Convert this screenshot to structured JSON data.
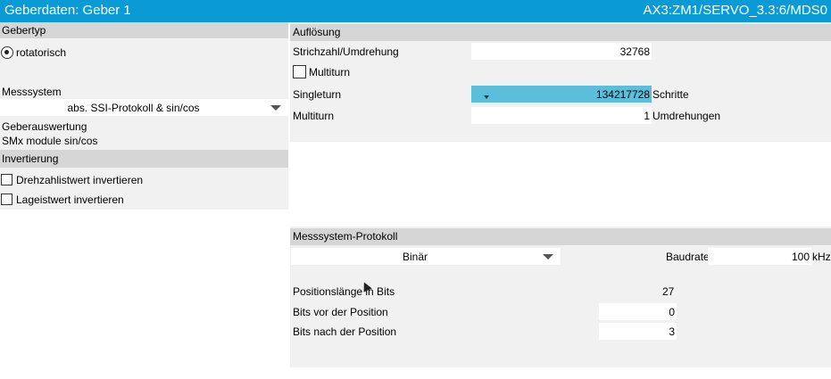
{
  "window": {
    "title": "Geberdaten: Geber 1",
    "path": "AX3:ZM1/SERVO_3.3:6/MDS0"
  },
  "left": {
    "gebertyp_header": "Gebertyp",
    "gebertyp_option": "rotatorisch",
    "messsystem_label": "Messsystem",
    "messsystem_value": "abs. SSI-Protokoll & sin/cos",
    "geberauswertung_label": "Geberauswertung",
    "geberauswertung_value": "SMx module sin/cos",
    "invertierung_header": "Invertierung",
    "drehzahl_label": "Drehzahlistwert invertieren",
    "lage_label": "Lageistwert invertieren"
  },
  "aufloesung": {
    "header": "Auflösung",
    "strichzahl_label": "Strichzahl/Umdrehung",
    "strichzahl_value": "32768",
    "multiturn_checkbox_label": "Multiturn",
    "singleturn_label": "Singleturn",
    "singleturn_value": "134217728",
    "singleturn_unit": "Schritte",
    "multiturn_label": "Multiturn",
    "multiturn_value": "1",
    "multiturn_unit": "Umdrehungen"
  },
  "protokoll": {
    "header": "Messsystem-Protokoll",
    "format_value": "Binär",
    "baudrate_label": "Baudrate",
    "baudrate_value": "100",
    "baudrate_unit": "kHz",
    "positionslaenge_label": "Positionslänge in Bits",
    "positionslaenge_value": "27",
    "bits_vor_label": "Bits vor der Position",
    "bits_vor_value": "0",
    "bits_nach_label": "Bits nach der Position",
    "bits_nach_value": "3"
  },
  "colors": {
    "titlebar": "#0a9bd6",
    "panel": "#f1f1f1",
    "header": "#d6d6d6",
    "selected_field": "#5bbfdc"
  }
}
